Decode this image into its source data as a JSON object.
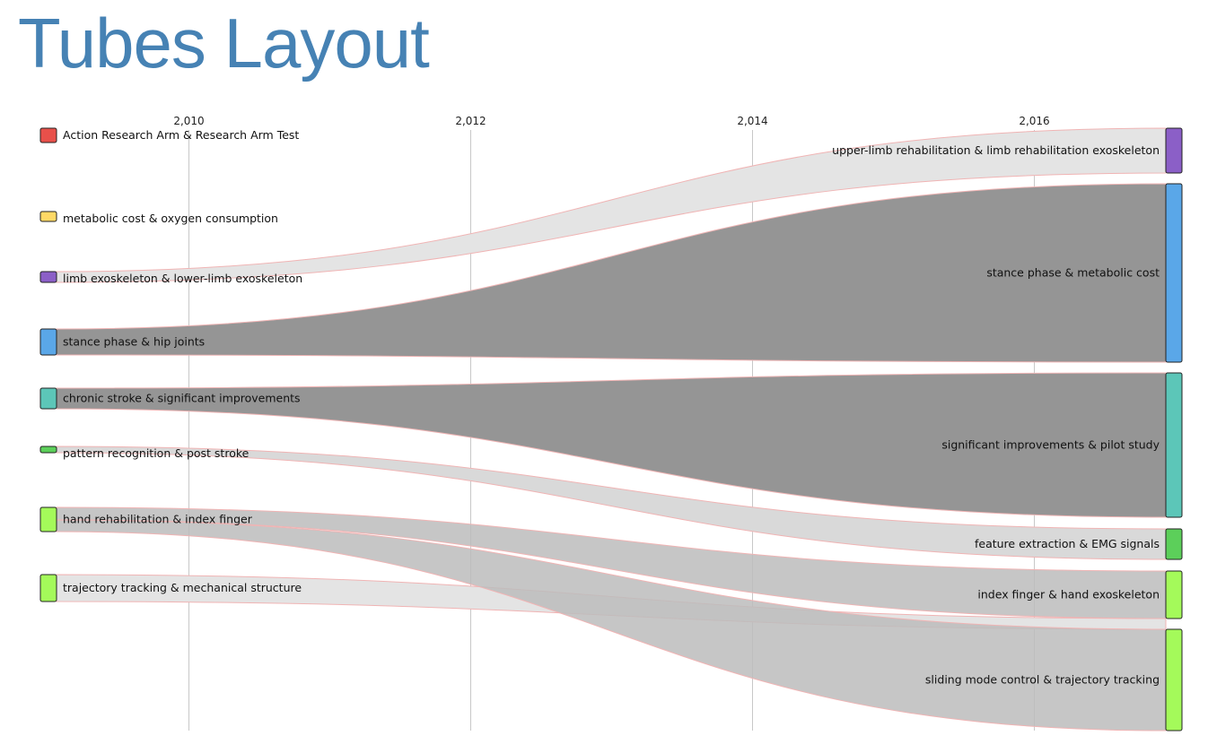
{
  "title": "Tubes Layout",
  "colors": {
    "title": "#4682b4",
    "flow_dark": "#959595",
    "flow_mid": "#bcbcbc",
    "flow_light": "#d9d9d9",
    "flow_faint": "#e4e4e4",
    "flow_border": "#f0b4b4",
    "gridline": "#c8c8c8"
  },
  "axis": {
    "ticks": [
      {
        "value": 2010,
        "label": "2,010"
      },
      {
        "value": 2012,
        "label": "2,012"
      },
      {
        "value": 2014,
        "label": "2,014"
      },
      {
        "value": 2016,
        "label": "2,016"
      }
    ]
  },
  "nodes": {
    "left": [
      {
        "id": "L1",
        "label": "Action Research Arm & Research Arm Test",
        "color": "#e8504a"
      },
      {
        "id": "L2",
        "label": "metabolic cost & oxygen consumption",
        "color": "#ffd966"
      },
      {
        "id": "L3",
        "label": "limb exoskeleton & lower-limb exoskeleton",
        "color": "#8b5fc7"
      },
      {
        "id": "L4",
        "label": "stance phase & hip joints",
        "color": "#5aa7e8"
      },
      {
        "id": "L5",
        "label": "chronic stroke & significant improvements",
        "color": "#5cc6b8"
      },
      {
        "id": "L6",
        "label": "pattern recognition & post stroke",
        "color": "#5ccf5a"
      },
      {
        "id": "L7",
        "label": "hand rehabilitation & index finger",
        "color": "#a4fa5a"
      },
      {
        "id": "L8",
        "label": "trajectory tracking & mechanical structure",
        "color": "#a4fa5a"
      }
    ],
    "right": [
      {
        "id": "R1",
        "label": "upper-limb rehabilitation & limb rehabilitation exoskeleton",
        "color": "#8b5fc7"
      },
      {
        "id": "R2",
        "label": "stance phase & metabolic cost",
        "color": "#5aa7e8"
      },
      {
        "id": "R3",
        "label": "significant improvements & pilot study",
        "color": "#5cc6b8"
      },
      {
        "id": "R4",
        "label": "feature extraction & EMG signals",
        "color": "#5ccf5a"
      },
      {
        "id": "R5",
        "label": "index finger & hand exoskeleton",
        "color": "#a4fa5a"
      },
      {
        "id": "R6",
        "label": "sliding mode control & trajectory tracking",
        "color": "#a4fa5a"
      }
    ]
  },
  "links": [
    {
      "source": "L3",
      "target": "R1",
      "shade": "faint"
    },
    {
      "source": "L4",
      "target": "R2",
      "shade": "dark"
    },
    {
      "source": "L5",
      "target": "R3",
      "shade": "dark"
    },
    {
      "source": "L6",
      "target": "R4",
      "shade": "light"
    },
    {
      "source": "L7",
      "target": "R5",
      "shade": "mid"
    },
    {
      "source": "L7",
      "target": "R6",
      "shade": "mid"
    },
    {
      "source": "L8",
      "target": "R6",
      "shade": "faint"
    }
  ]
}
